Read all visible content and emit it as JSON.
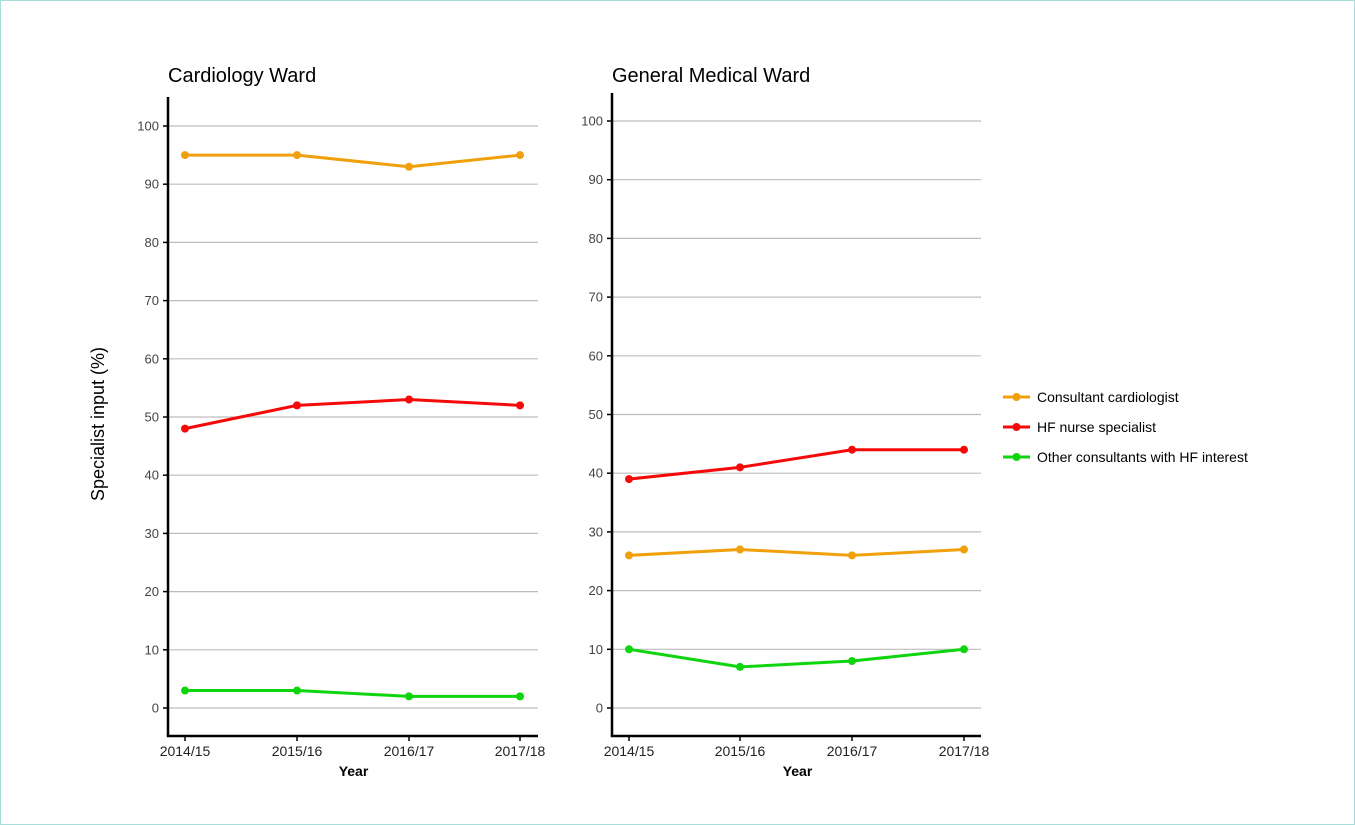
{
  "colors": {
    "frame_border": "#a8dcd9",
    "grid": "#bdbdbd"
  },
  "chart_data": {
    "type": "line",
    "ylabel": "Specialist input (%)",
    "xlabel": "Year",
    "legend": {
      "placement": "right",
      "entries": [
        {
          "name": "Consultant cardiologist",
          "color": "#f0a00a"
        },
        {
          "name": "HF nurse specialist",
          "color": "#f50a0a"
        },
        {
          "name": "Other consultants with HF interest",
          "color": "#0ed50e"
        }
      ]
    },
    "yticks": [
      0,
      10,
      20,
      30,
      40,
      50,
      60,
      70,
      80,
      90,
      100
    ],
    "ytick_labels": [
      "0",
      "10",
      "20",
      "30",
      "40",
      "50",
      "60",
      "70",
      "80",
      "90",
      "100"
    ],
    "ylim": [
      -5,
      105
    ],
    "grid": "horizontal",
    "panels": [
      {
        "title": "Cardiology Ward",
        "categories": [
          "2014/15",
          "2015/16",
          "2016/17",
          "2017/18"
        ],
        "series": [
          {
            "name": "Consultant cardiologist",
            "color": "#f0a00a",
            "values": [
              95,
              95,
              93,
              95
            ]
          },
          {
            "name": "HF nurse specialist",
            "color": "#f50a0a",
            "values": [
              48,
              52,
              53,
              52
            ]
          },
          {
            "name": "Other consultants with HF interest",
            "color": "#0ed50e",
            "values": [
              3,
              3,
              2,
              2
            ]
          }
        ]
      },
      {
        "title": "General Medical Ward",
        "categories": [
          "2014/15",
          "2015/16",
          "2016/17",
          "2017/18"
        ],
        "series": [
          {
            "name": "Consultant cardiologist",
            "color": "#f0a00a",
            "values": [
              26,
              27,
              26,
              27
            ]
          },
          {
            "name": "HF nurse specialist",
            "color": "#f50a0a",
            "values": [
              39,
              41,
              44,
              44
            ]
          },
          {
            "name": "Other consultants with HF interest",
            "color": "#0ed50e",
            "values": [
              10,
              7,
              8,
              10
            ]
          }
        ]
      }
    ]
  }
}
